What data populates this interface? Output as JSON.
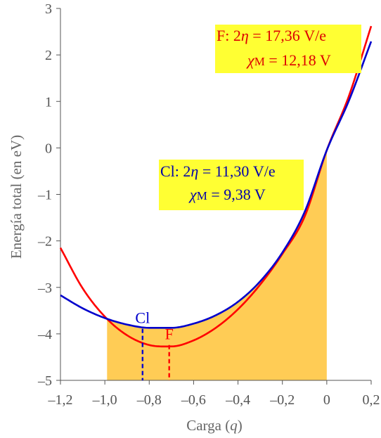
{
  "chart_data": {
    "type": "line",
    "title": "",
    "xlabel_prefix": "Carga (",
    "xlabel_var": "q",
    "xlabel_suffix": ")",
    "ylabel": "Energía total (en eV)",
    "xlim": [
      -1.2,
      0.2
    ],
    "ylim": [
      -5,
      3
    ],
    "xticks": [
      -1.2,
      -1.0,
      -0.8,
      -0.6,
      -0.4,
      -0.2,
      0,
      0.2
    ],
    "xtick_labels": [
      "–1,2",
      "–1,0",
      "–0,8",
      "–0,6",
      "–0,4",
      "–0,2",
      "0",
      "0,2"
    ],
    "yticks": [
      -5,
      -4,
      -3,
      -2,
      -1,
      0,
      1,
      2,
      3
    ],
    "ytick_labels": [
      "–5",
      "–4",
      "–3",
      "–2",
      "–1",
      "0",
      "1",
      "2",
      "3"
    ],
    "grid": false,
    "series": [
      {
        "name": "F",
        "color": "#ff0000",
        "x": [
          -1.2,
          -1.1,
          -1.0,
          -0.9,
          -0.8,
          -0.7,
          -0.6,
          -0.5,
          -0.4,
          -0.3,
          -0.2,
          -0.1,
          0,
          0.1,
          0.2
        ],
        "y": [
          -2.15,
          -3.02,
          -3.63,
          -4.03,
          -4.24,
          -4.27,
          -4.14,
          -3.87,
          -3.47,
          -2.94,
          -2.28,
          -1.48,
          -0.05,
          1.12,
          2.62
        ]
      },
      {
        "name": "Cl",
        "color": "#0000cc",
        "x": [
          -1.2,
          -1.1,
          -1.0,
          -0.9,
          -0.8,
          -0.7,
          -0.6,
          -0.5,
          -0.4,
          -0.3,
          -0.2,
          -0.1,
          0,
          0.1,
          0.2
        ],
        "y": [
          -3.17,
          -3.45,
          -3.66,
          -3.8,
          -3.87,
          -3.87,
          -3.78,
          -3.6,
          -3.31,
          -2.87,
          -2.25,
          -1.38,
          -0.05,
          1.02,
          2.29
        ]
      }
    ],
    "shaded_region": {
      "color": "#ffcc55",
      "x": [
        -0.99,
        0
      ],
      "y_bottom": -5
    },
    "minima": [
      {
        "label": "Cl",
        "x": -0.83,
        "y": -3.89,
        "color": "#0000cc"
      },
      {
        "label": "F",
        "x": -0.71,
        "y": -4.24,
        "color": "#ff0000"
      }
    ],
    "boxes": [
      {
        "id": "F",
        "color": "#dd0000",
        "background": "#ffff33",
        "line1_prefix": "F:   2",
        "line1_symbol": "η",
        "line1_value": " = 17,36 V/e",
        "line2_symbol": "χ",
        "line2_sub": "M",
        "line2_value": " = 12,18 V"
      },
      {
        "id": "Cl",
        "color": "#0000aa",
        "background": "#ffff33",
        "line1_prefix": "Cl:  2",
        "line1_symbol": "η",
        "line1_value": " = 11,30 V/e",
        "line2_symbol": "χ",
        "line2_sub": "M",
        "line2_value": " =    9,38 V"
      }
    ]
  }
}
